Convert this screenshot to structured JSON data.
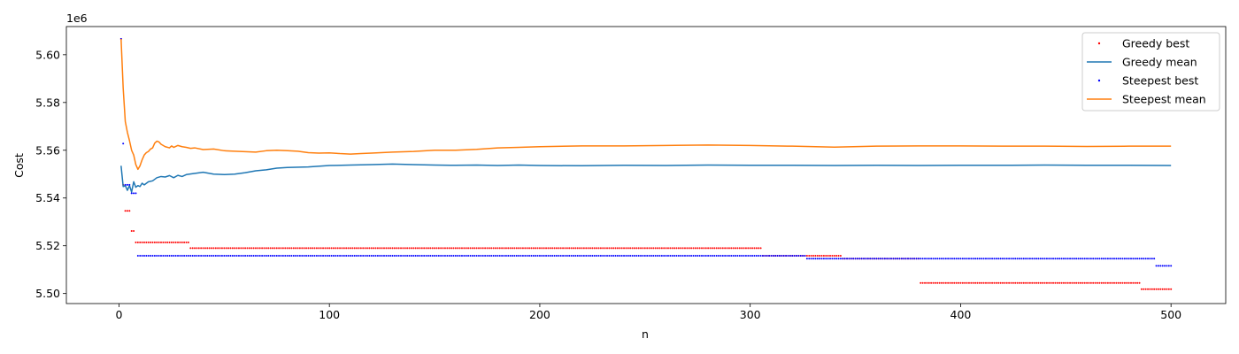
{
  "chart_data": {
    "type": "line",
    "title": "",
    "xlabel": "n",
    "ylabel": "Cost",
    "offset_text": "1e6",
    "xlim": [
      -25,
      526
    ],
    "ylim": [
      5.4958,
      5.6118
    ],
    "x_ticks": [
      0,
      100,
      200,
      300,
      400,
      500
    ],
    "x_tick_labels": [
      "0",
      "100",
      "200",
      "300",
      "400",
      "500"
    ],
    "y_ticks": [
      5.5,
      5.52,
      5.54,
      5.56,
      5.58,
      5.6
    ],
    "y_tick_labels": [
      "5.50",
      "5.52",
      "5.54",
      "5.56",
      "5.58",
      "5.60"
    ],
    "grid": false,
    "legend_position": "top-right",
    "series": [
      {
        "name": "Greedy best",
        "kind": "scatter",
        "color": "#ff0000",
        "steps": [
          {
            "from": 1,
            "to": 1,
            "value": 5.6066
          },
          {
            "from": 2,
            "to": 2,
            "value": 5.5455
          },
          {
            "from": 3,
            "to": 5,
            "value": 5.5346
          },
          {
            "from": 6,
            "to": 7,
            "value": 5.5262
          },
          {
            "from": 8,
            "to": 33,
            "value": 5.5214
          },
          {
            "from": 34,
            "to": 305,
            "value": 5.519
          },
          {
            "from": 306,
            "to": 326,
            "value": 5.5158
          },
          {
            "from": 327,
            "to": 343,
            "value": 5.5158
          },
          {
            "from": 344,
            "to": 380,
            "value": 5.5146
          },
          {
            "from": 381,
            "to": 485,
            "value": 5.5044
          },
          {
            "from": 486,
            "to": 500,
            "value": 5.5018
          }
        ]
      },
      {
        "name": "Greedy mean",
        "kind": "line",
        "color": "#1f77b4",
        "points": [
          [
            1,
            5.5535
          ],
          [
            2,
            5.5448
          ],
          [
            3,
            5.5452
          ],
          [
            4,
            5.5432
          ],
          [
            5,
            5.5452
          ],
          [
            6,
            5.5425
          ],
          [
            7,
            5.5468
          ],
          [
            8,
            5.5445
          ],
          [
            9,
            5.5452
          ],
          [
            10,
            5.5448
          ],
          [
            11,
            5.5462
          ],
          [
            12,
            5.5455
          ],
          [
            14,
            5.5468
          ],
          [
            16,
            5.5472
          ],
          [
            18,
            5.5485
          ],
          [
            20,
            5.549
          ],
          [
            22,
            5.5488
          ],
          [
            24,
            5.5494
          ],
          [
            26,
            5.5485
          ],
          [
            28,
            5.5495
          ],
          [
            30,
            5.549
          ],
          [
            32,
            5.5498
          ],
          [
            35,
            5.5502
          ],
          [
            40,
            5.5508
          ],
          [
            45,
            5.55
          ],
          [
            50,
            5.5498
          ],
          [
            55,
            5.55
          ],
          [
            60,
            5.5506
          ],
          [
            65,
            5.5514
          ],
          [
            70,
            5.5518
          ],
          [
            75,
            5.5525
          ],
          [
            80,
            5.5528
          ],
          [
            90,
            5.553
          ],
          [
            100,
            5.5536
          ],
          [
            110,
            5.5538
          ],
          [
            120,
            5.554
          ],
          [
            130,
            5.5542
          ],
          [
            140,
            5.554
          ],
          [
            150,
            5.5538
          ],
          [
            160,
            5.5537
          ],
          [
            170,
            5.5538
          ],
          [
            180,
            5.5536
          ],
          [
            190,
            5.5538
          ],
          [
            200,
            5.5536
          ],
          [
            220,
            5.5535
          ],
          [
            240,
            5.5537
          ],
          [
            260,
            5.5536
          ],
          [
            280,
            5.5538
          ],
          [
            300,
            5.5537
          ],
          [
            320,
            5.5537
          ],
          [
            340,
            5.5536
          ],
          [
            360,
            5.5537
          ],
          [
            380,
            5.5536
          ],
          [
            400,
            5.5537
          ],
          [
            420,
            5.5537
          ],
          [
            440,
            5.5538
          ],
          [
            460,
            5.5537
          ],
          [
            480,
            5.5537
          ],
          [
            500,
            5.5536
          ]
        ]
      },
      {
        "name": "Steepest best",
        "kind": "scatter",
        "color": "#0000ff",
        "steps": [
          {
            "from": 1,
            "to": 1,
            "value": 5.6066
          },
          {
            "from": 2,
            "to": 2,
            "value": 5.5628
          },
          {
            "from": 3,
            "to": 5,
            "value": 5.5455
          },
          {
            "from": 6,
            "to": 8,
            "value": 5.542
          },
          {
            "from": 9,
            "to": 326,
            "value": 5.5158
          },
          {
            "from": 327,
            "to": 492,
            "value": 5.5146
          },
          {
            "from": 493,
            "to": 500,
            "value": 5.5116
          }
        ]
      },
      {
        "name": "Steepest mean",
        "kind": "line",
        "color": "#ff7f0e",
        "points": [
          [
            1,
            5.6066
          ],
          [
            2,
            5.586
          ],
          [
            3,
            5.572
          ],
          [
            4,
            5.5675
          ],
          [
            5,
            5.564
          ],
          [
            6,
            5.56
          ],
          [
            7,
            5.558
          ],
          [
            8,
            5.554
          ],
          [
            9,
            5.552
          ],
          [
            10,
            5.5535
          ],
          [
            11,
            5.556
          ],
          [
            12,
            5.558
          ],
          [
            13,
            5.559
          ],
          [
            14,
            5.5595
          ],
          [
            15,
            5.5605
          ],
          [
            16,
            5.561
          ],
          [
            17,
            5.563
          ],
          [
            18,
            5.5638
          ],
          [
            19,
            5.5635
          ],
          [
            20,
            5.5625
          ],
          [
            22,
            5.5615
          ],
          [
            24,
            5.561
          ],
          [
            25,
            5.5618
          ],
          [
            26,
            5.5612
          ],
          [
            28,
            5.562
          ],
          [
            30,
            5.5615
          ],
          [
            32,
            5.5612
          ],
          [
            34,
            5.5608
          ],
          [
            36,
            5.561
          ],
          [
            40,
            5.5603
          ],
          [
            45,
            5.5605
          ],
          [
            50,
            5.5598
          ],
          [
            55,
            5.5596
          ],
          [
            60,
            5.5594
          ],
          [
            65,
            5.5592
          ],
          [
            70,
            5.5598
          ],
          [
            75,
            5.56
          ],
          [
            80,
            5.5598
          ],
          [
            85,
            5.5596
          ],
          [
            90,
            5.559
          ],
          [
            95,
            5.5588
          ],
          [
            100,
            5.5589
          ],
          [
            105,
            5.5586
          ],
          [
            110,
            5.5584
          ],
          [
            115,
            5.5586
          ],
          [
            120,
            5.5588
          ],
          [
            130,
            5.5592
          ],
          [
            140,
            5.5595
          ],
          [
            150,
            5.56
          ],
          [
            160,
            5.56
          ],
          [
            170,
            5.5604
          ],
          [
            180,
            5.561
          ],
          [
            190,
            5.5612
          ],
          [
            200,
            5.5615
          ],
          [
            220,
            5.5618
          ],
          [
            240,
            5.5618
          ],
          [
            260,
            5.562
          ],
          [
            280,
            5.5622
          ],
          [
            300,
            5.562
          ],
          [
            320,
            5.5617
          ],
          [
            340,
            5.5613
          ],
          [
            360,
            5.5617
          ],
          [
            380,
            5.5618
          ],
          [
            400,
            5.5618
          ],
          [
            420,
            5.5617
          ],
          [
            440,
            5.5617
          ],
          [
            460,
            5.5616
          ],
          [
            480,
            5.5617
          ],
          [
            500,
            5.5617
          ]
        ]
      }
    ]
  }
}
